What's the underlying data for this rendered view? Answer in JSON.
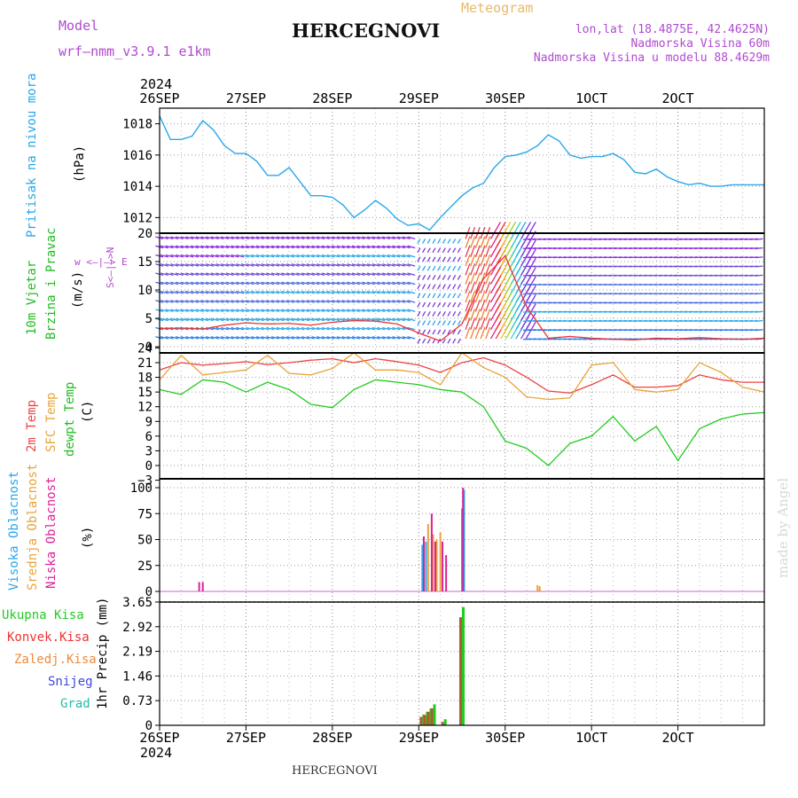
{
  "header": {
    "model_label": "Model",
    "model_name": "wrf—nmm_v3.9.1  e1km",
    "title": "HERCEGNOVI",
    "meteogram": "Meteogram",
    "lonlat": "lon,lat (18.4875E, 42.4625N)",
    "elevation": "Nadmorska Visina 60m",
    "model_elevation": "Nadmorska Visina u modelu 88.4629m"
  },
  "time_axis": {
    "year": "2024",
    "labels": [
      "26SEP",
      "27SEP",
      "28SEP",
      "29SEP",
      "30SEP",
      "1OCT",
      "2OCT"
    ]
  },
  "footer": {
    "station": "HERCEGNOVI"
  },
  "watermark": "made by Angel",
  "panels": {
    "pressure": {
      "label": "Pritisak na nivou mora",
      "unit": "(hPa)",
      "color": "#2aa7ea",
      "ticks": [
        "1018",
        "1016",
        "1014",
        "1012"
      ]
    },
    "wind": {
      "label1": "10m Vjetar",
      "label2": "Brzina i Pravac",
      "unit": "(m/s)",
      "compass": "w  <—|—>  E",
      "compass2": "S<—|—>N",
      "ticks": [
        "20",
        "15",
        "10",
        "5",
        "0"
      ]
    },
    "temp": {
      "label1": "2m Temp",
      "label2": "SFC Temp",
      "label3": "dewpt Temp",
      "unit": "(C)",
      "ticks": [
        "24",
        "21",
        "18",
        "15",
        "12",
        "9",
        "6",
        "3",
        "0",
        "−3"
      ]
    },
    "cloud": {
      "label1": "Visoka Oblacnost",
      "label2": "Srednja Oblacnost",
      "label3": "Niska Oblacnost",
      "unit": "(%)",
      "ticks": [
        "100",
        "75",
        "50",
        "25",
        "0"
      ]
    },
    "precip": {
      "legend": [
        "Ukupna Kisa",
        "Konvek.Kisa",
        "Zaledj.Kisa",
        "Snijeg",
        "Grad"
      ],
      "legend_colors": [
        "#22cc22",
        "#ee3333",
        "#f08a3a",
        "#4444dd",
        "#22bbaa"
      ],
      "unit": "1hr Precip (mm)",
      "ticks": [
        "3.65",
        "2.92",
        "2.19",
        "1.46",
        "0.73",
        "0"
      ]
    }
  },
  "chart_data": [
    {
      "type": "line",
      "title": "",
      "ylabel": "Pritisak na nivou mora (hPa)",
      "ylim": [
        1011,
        1019
      ],
      "x": [
        0,
        3,
        6,
        9,
        12,
        15,
        18,
        21,
        24,
        27,
        30,
        33,
        36,
        39,
        42,
        45,
        48,
        51,
        54,
        57,
        60,
        63,
        66,
        69,
        72,
        75,
        78,
        81,
        84,
        87,
        90,
        93,
        96,
        99,
        102,
        105,
        108,
        111,
        114,
        117,
        120,
        123,
        126,
        129,
        132,
        135,
        138,
        141,
        144,
        147,
        150,
        153,
        156,
        159,
        162,
        165,
        168
      ],
      "series": [
        {
          "name": "",
          "values": [
            1018.5,
            1017.0,
            1017.0,
            1017.2,
            1018.2,
            1017.6,
            1016.6,
            1016.1,
            1016.1,
            1015.6,
            1014.7,
            1014.7,
            1015.2,
            1014.3,
            1013.4,
            1013.4,
            1013.3,
            1012.8,
            1012.0,
            1012.5,
            1013.1,
            1012.6,
            1011.9,
            1011.5,
            1011.6,
            1011.2,
            1012.0,
            1012.7,
            1013.4,
            1013.9,
            1014.2,
            1015.2,
            1015.9,
            1016.0,
            1016.2,
            1016.6,
            1017.3,
            1016.9,
            1016.0,
            1015.8,
            1015.9,
            1015.9,
            1016.1,
            1015.7,
            1014.9,
            1014.8,
            1015.1,
            1014.6,
            1014.3,
            1014.1,
            1014.2,
            1014.0,
            1014.0,
            1014.1,
            1014.1,
            1014.1,
            1014.1
          ]
        }
      ]
    },
    {
      "type": "line",
      "title": "",
      "ylabel": "10m Vjetar Brzina i Pravac (m/s)",
      "ylim": [
        -1,
        20
      ],
      "x": [
        0,
        6,
        12,
        18,
        24,
        30,
        36,
        42,
        48,
        54,
        60,
        66,
        72,
        78,
        84,
        90,
        96,
        102,
        108,
        114,
        120,
        126,
        132,
        138,
        144,
        150,
        156,
        162,
        168
      ],
      "series": [
        {
          "name": "",
          "values": [
            3.2,
            3.3,
            3.1,
            3.8,
            4.2,
            4.0,
            4.1,
            3.8,
            4.3,
            4.6,
            4.5,
            4.0,
            2.4,
            1.0,
            4.0,
            12.0,
            16.0,
            7.0,
            1.5,
            1.8,
            1.5,
            1.3,
            1.2,
            1.5,
            1.4,
            1.6,
            1.4,
            1.3,
            1.5
          ]
        }
      ]
    },
    {
      "type": "line",
      "title": "",
      "ylabel": "Temp (C)",
      "ylim": [
        -3,
        25
      ],
      "x": [
        0,
        6,
        12,
        18,
        24,
        30,
        36,
        42,
        48,
        54,
        60,
        66,
        72,
        78,
        84,
        90,
        96,
        102,
        108,
        114,
        120,
        126,
        132,
        138,
        144,
        150,
        156,
        162,
        168
      ],
      "series": [
        {
          "name": "2m Temp",
          "values": [
            19.5,
            21.0,
            20.5,
            20.8,
            21.2,
            20.6,
            21.0,
            21.5,
            21.8,
            21.0,
            21.8,
            21.2,
            20.5,
            19.0,
            21.0,
            22.0,
            20.5,
            18.0,
            15.2,
            14.8,
            16.5,
            18.5,
            16.0,
            16.0,
            16.3,
            18.5,
            17.5,
            17.0,
            17.0
          ]
        },
        {
          "name": "SFC Temp",
          "values": [
            17.5,
            22.5,
            18.5,
            19.0,
            19.5,
            22.5,
            18.8,
            18.5,
            19.8,
            23.0,
            19.5,
            19.5,
            19.0,
            16.5,
            23.0,
            20.0,
            18.0,
            14.0,
            13.5,
            13.8,
            20.5,
            21.0,
            15.5,
            15.0,
            15.5,
            21.0,
            19.0,
            16.0,
            15.0
          ]
        },
        {
          "name": "dewpt Temp",
          "values": [
            15.5,
            14.5,
            17.5,
            17.0,
            15.0,
            17.0,
            15.5,
            12.5,
            11.8,
            15.5,
            17.5,
            17.0,
            16.5,
            15.5,
            15.0,
            12.0,
            5.0,
            3.5,
            0.0,
            4.5,
            6.0,
            10.0,
            5.0,
            8.0,
            1.0,
            7.5,
            9.5,
            10.5,
            10.8
          ]
        }
      ]
    },
    {
      "type": "bar",
      "title": "",
      "ylabel": "Oblacnost (%)",
      "ylim": [
        0,
        100
      ],
      "series": [
        {
          "name": "Visoka Oblacnost",
          "x": [
            73.0,
            74.0,
            84.0,
            84.6
          ],
          "values": [
            45,
            48,
            80,
            98
          ]
        },
        {
          "name": "Srednja Oblacnost",
          "x": [
            74.6,
            76.0,
            77.0,
            78.0,
            105.0,
            105.6
          ],
          "values": [
            65,
            55,
            50,
            57,
            6,
            5
          ]
        },
        {
          "name": "Niska Oblacnost",
          "x": [
            11.0,
            12.0,
            73.4,
            75.6,
            76.6,
            78.6,
            79.6,
            84.3
          ],
          "values": [
            9,
            9,
            53,
            75,
            48,
            48,
            35,
            100
          ]
        }
      ]
    },
    {
      "type": "bar",
      "title": "",
      "ylabel": "1hr Precip (mm)",
      "ylim": [
        0,
        3.65
      ],
      "series": [
        {
          "name": "Ukupna Kisa",
          "x": [
            73,
            74,
            75,
            76,
            79,
            84
          ],
          "values": [
            0.32,
            0.4,
            0.5,
            0.62,
            0.18,
            3.5
          ]
        },
        {
          "name": "Konvek.Kisa",
          "x": [
            73,
            74,
            75,
            76,
            79,
            84
          ],
          "values": [
            0.25,
            0.3,
            0.4,
            0.5,
            0.1,
            3.2
          ]
        }
      ]
    }
  ]
}
